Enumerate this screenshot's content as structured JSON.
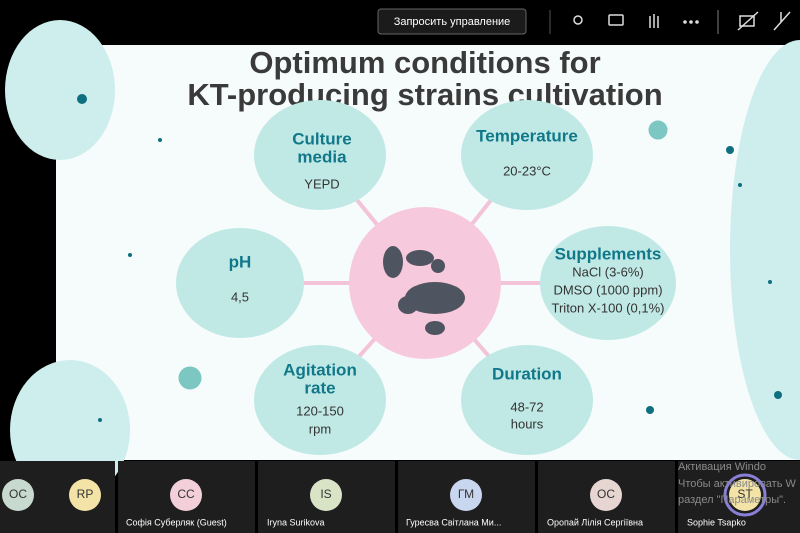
{
  "toolbar": {
    "request_control": "Запросить управление"
  },
  "slide": {
    "title": [
      "Optimum conditions for",
      "KT-producing strains cultivation"
    ],
    "nodes": [
      {
        "heading": [
          "Culture",
          "media"
        ],
        "values": [
          "YEPD"
        ]
      },
      {
        "heading": [
          "Temperature"
        ],
        "values": [
          "20-23°C"
        ]
      },
      {
        "heading": [
          "pH"
        ],
        "values": [
          "4,5"
        ]
      },
      {
        "heading": [
          "Supplements"
        ],
        "values": [
          "NaCl (3-6%)",
          "DMSO (1000 ppm)",
          "Triton X-100 (0,1%)"
        ]
      },
      {
        "heading": [
          "Agitation",
          "rate"
        ],
        "values": [
          "120-150",
          "rpm"
        ]
      },
      {
        "heading": [
          "Duration"
        ],
        "values": [
          "48-72",
          "hours"
        ]
      }
    ]
  },
  "participants": [
    {
      "initials": "OC"
    },
    {
      "initials": "RP"
    },
    {
      "initials": "CC",
      "name": "Софія Суберляк (Guest)"
    },
    {
      "initials": "IS",
      "name": "Iryna Surikova"
    },
    {
      "initials": "ГМ",
      "name": "Гуресва Світлана Ми..."
    },
    {
      "initials": "OC",
      "name": "Оропай Лілія Сергіївна"
    },
    {
      "initials": "ST",
      "name": "Sophie Tsapko"
    }
  ],
  "watermark": [
    "Активация Windo",
    "Чтобы активировать W",
    "раздел \"Параметры\"."
  ]
}
